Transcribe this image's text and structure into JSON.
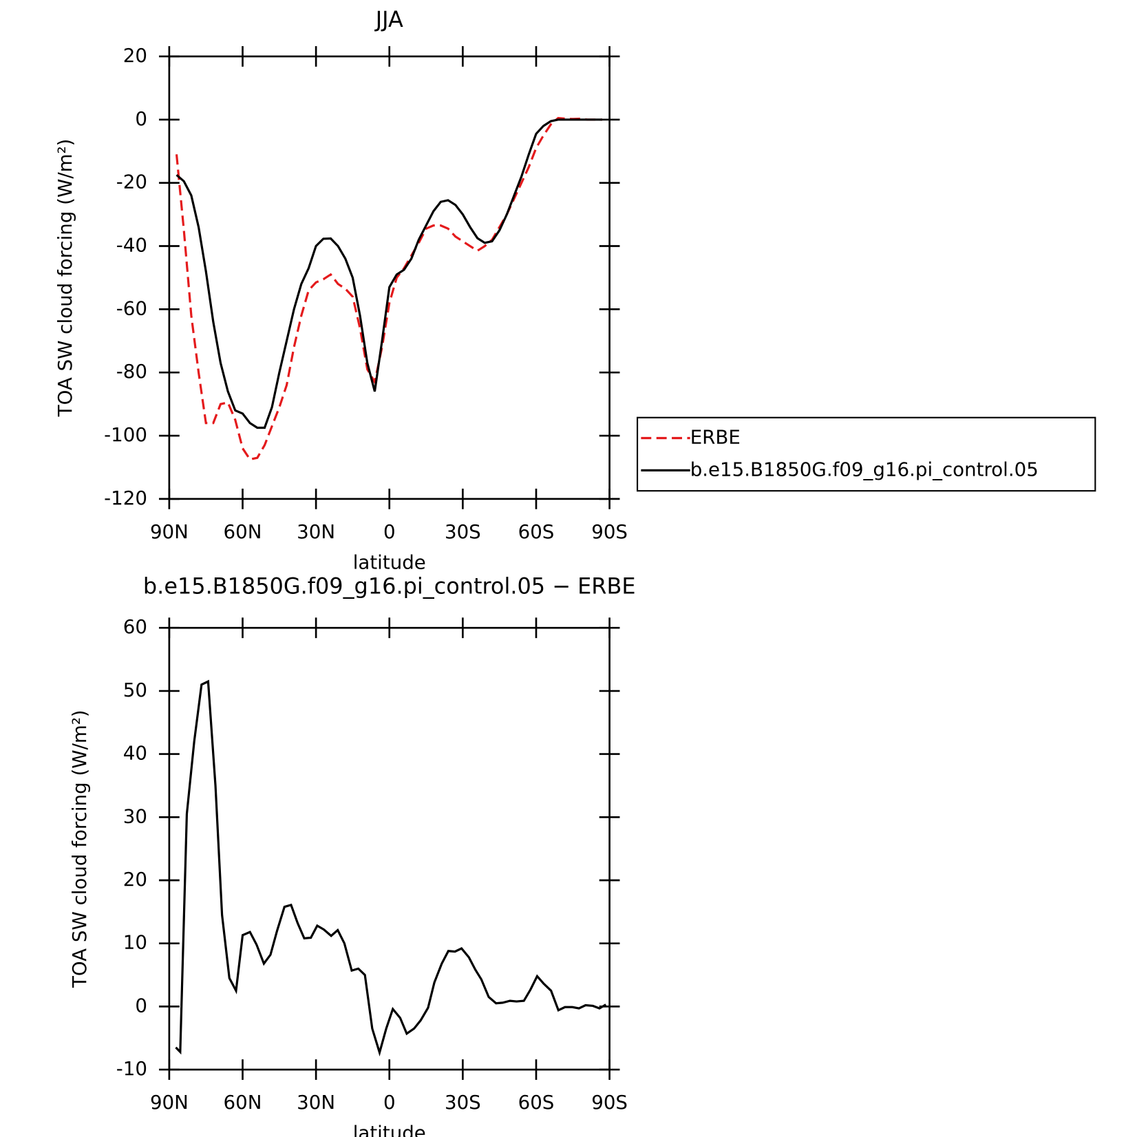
{
  "chart_data": [
    {
      "type": "line",
      "title": "JJA",
      "x_label": "latitude",
      "y_label": "TOA SW cloud forcing (W/m²)",
      "x": [
        87,
        84,
        81,
        78,
        75,
        72,
        69,
        66,
        63,
        60,
        57,
        54,
        51,
        48,
        45,
        42,
        39,
        36,
        33,
        30,
        27,
        24,
        21,
        18,
        15,
        12,
        9,
        6,
        3,
        0,
        -3,
        -6,
        -9,
        -12,
        -15,
        -18,
        -21,
        -24,
        -27,
        -30,
        -33,
        -36,
        -39,
        -42,
        -45,
        -48,
        -51,
        -54,
        -57,
        -60,
        -63,
        -66,
        -69,
        -72,
        -75,
        -78,
        -81,
        -84,
        -87
      ],
      "series": [
        {
          "name": "ERBE",
          "color": "#e41a1c",
          "line_style": "dashed",
          "values": [
            -11,
            -35,
            -62,
            -80,
            -96,
            -96,
            -90,
            -89.5,
            -95,
            -104,
            -107.5,
            -107,
            -103,
            -97,
            -91,
            -84,
            -72,
            -62,
            -54,
            -51.5,
            -50.5,
            -49,
            -52,
            -53.5,
            -56,
            -66,
            -79,
            -83,
            -72,
            -58,
            -50,
            -47,
            -43,
            -39,
            -34.5,
            -33.5,
            -33.5,
            -34.5,
            -37,
            -38.5,
            -40,
            -41.5,
            -40,
            -38,
            -34,
            -30,
            -25,
            -20,
            -15,
            -9,
            -5,
            -1.5,
            0.5,
            0.3,
            0.2,
            0.3,
            0,
            0,
            0
          ]
        },
        {
          "name": "b.e15.B1850G.f09_g16.pi_control.05",
          "color": "#000000",
          "line_style": "solid",
          "values": [
            -17.5,
            -19.5,
            -24,
            -34,
            -48,
            -64,
            -77,
            -86,
            -92,
            -93,
            -96,
            -97.5,
            -97.5,
            -91,
            -80,
            -70,
            -60,
            -52,
            -47,
            -40,
            -37.7,
            -37.6,
            -40,
            -44,
            -50,
            -62,
            -77,
            -86,
            -70,
            -53,
            -49,
            -47.5,
            -44,
            -38,
            -33.5,
            -29,
            -26,
            -25.5,
            -27,
            -30,
            -34,
            -37.5,
            -39,
            -38.5,
            -35,
            -30,
            -24,
            -18,
            -11,
            -4.5,
            -2,
            -0.5,
            0,
            0,
            0,
            0,
            0,
            0,
            0
          ]
        }
      ],
      "xlim": [
        90,
        -90
      ],
      "xticks": [
        {
          "value": 90,
          "label": "90N"
        },
        {
          "value": 60,
          "label": "60N"
        },
        {
          "value": 30,
          "label": "30N"
        },
        0,
        {
          "value": -30,
          "label": "30S"
        },
        {
          "value": -60,
          "label": "60S"
        },
        {
          "value": -90,
          "label": "90S"
        }
      ],
      "ylim": [
        -120,
        20
      ],
      "yticks": [
        -120,
        -100,
        -80,
        -60,
        -40,
        -20,
        0,
        20
      ],
      "legend": "right"
    },
    {
      "type": "line",
      "title": "b.e15.B1850G.f09_g16.pi_control.05 − ERBE",
      "x_label": "latitude",
      "y_label": "TOA SW cloud forcing (W/m²)",
      "x": [
        87.3,
        85.5,
        82.8,
        79.8,
        76.8,
        74.1,
        71.1,
        68.4,
        65.4,
        62.7,
        60.0,
        57.0,
        54.3,
        51.3,
        48.6,
        45.9,
        42.9,
        40.2,
        37.5,
        34.8,
        32.1,
        29.5,
        26.8,
        23.8,
        21.1,
        18.4,
        15.4,
        12.7,
        10.0,
        7.0,
        4.0,
        1.3,
        -1.4,
        -4.4,
        -7.1,
        -10.1,
        -12.8,
        -15.8,
        -18.4,
        -21.4,
        -24.1,
        -26.8,
        -29.5,
        -32.5,
        -35.2,
        -37.6,
        -40.6,
        -43.6,
        -46.3,
        -49.3,
        -52.0,
        -55.0,
        -57.7,
        -60.4,
        -63.1,
        -66.1,
        -69.1,
        -71.8,
        -74.8,
        -77.5,
        -80.2,
        -83.2,
        -85.9,
        -88.5
      ],
      "series": [
        {
          "color": "#000000",
          "line_style": "solid",
          "values": [
            -6.5,
            -7.2,
            30.5,
            42,
            51,
            51.5,
            35,
            14.5,
            4.5,
            2.5,
            11.3,
            11.8,
            9.8,
            6.8,
            8.2,
            12,
            15.8,
            16.1,
            13.2,
            10.8,
            10.9,
            12.8,
            12.2,
            11.2,
            12.1,
            10,
            5.7,
            6,
            5,
            -3.5,
            -7.3,
            -3.5,
            -0.4,
            -1.8,
            -4.3,
            -3.5,
            -2.2,
            -0.2,
            3.8,
            6.8,
            8.8,
            8.7,
            9.2,
            7.8,
            5.8,
            4.3,
            1.5,
            0.5,
            0.6,
            0.9,
            0.8,
            0.9,
            2.7,
            4.8,
            3.6,
            2.5,
            -0.6,
            -0.1,
            -0.1,
            -0.3,
            0.2,
            0.1,
            -0.3,
            0.3
          ]
        }
      ],
      "xlim": [
        90,
        -90
      ],
      "xticks": [
        {
          "value": 90,
          "label": "90N"
        },
        {
          "value": 60,
          "label": "60N"
        },
        {
          "value": 30,
          "label": "30N"
        },
        0,
        {
          "value": -30,
          "label": "30S"
        },
        {
          "value": -60,
          "label": "60S"
        },
        {
          "value": -90,
          "label": "90S"
        }
      ],
      "ylim": [
        -10,
        60
      ],
      "yticks": [
        -10,
        0,
        10,
        20,
        30,
        40,
        50,
        60
      ]
    }
  ]
}
